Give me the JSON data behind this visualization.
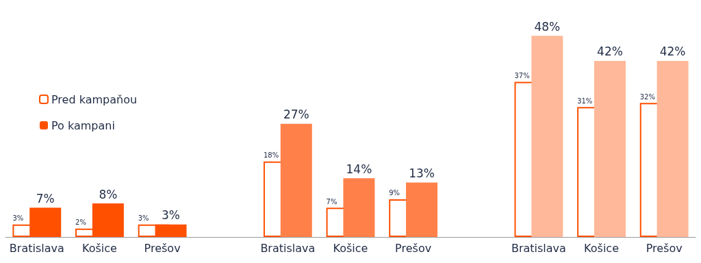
{
  "chart_data": {
    "type": "bar",
    "categories": [
      "Bratislava",
      "Košice",
      "Prešov",
      null,
      "Bratislava",
      "Košice",
      "Prešov",
      null,
      "Bratislava",
      "Košice",
      "Prešov"
    ],
    "series": [
      {
        "name": "Pred kampaňou",
        "color": "#ff5000",
        "values": [
          3,
          2,
          3,
          null,
          18,
          7,
          9,
          null,
          37,
          31,
          32
        ],
        "value_labels": [
          "3%",
          "2%",
          "3%",
          null,
          "18%",
          "7%",
          "9%",
          null,
          "37%",
          "31%",
          "32%"
        ]
      },
      {
        "name": "Po kampani",
        "colors": [
          "#ff5000",
          "#ff5000",
          "#ff5000",
          null,
          "#ff8149",
          "#ff8149",
          "#ff8149",
          null,
          "#ffb899",
          "#ffb899",
          "#ffb899"
        ],
        "values": [
          7,
          8,
          3,
          null,
          27,
          14,
          13,
          null,
          48,
          42,
          42
        ],
        "value_labels": [
          "7%",
          "8%",
          "3%",
          null,
          "27%",
          "14%",
          "13%",
          null,
          "48%",
          "42%",
          "42%"
        ]
      }
    ],
    "legend": "left"
  }
}
